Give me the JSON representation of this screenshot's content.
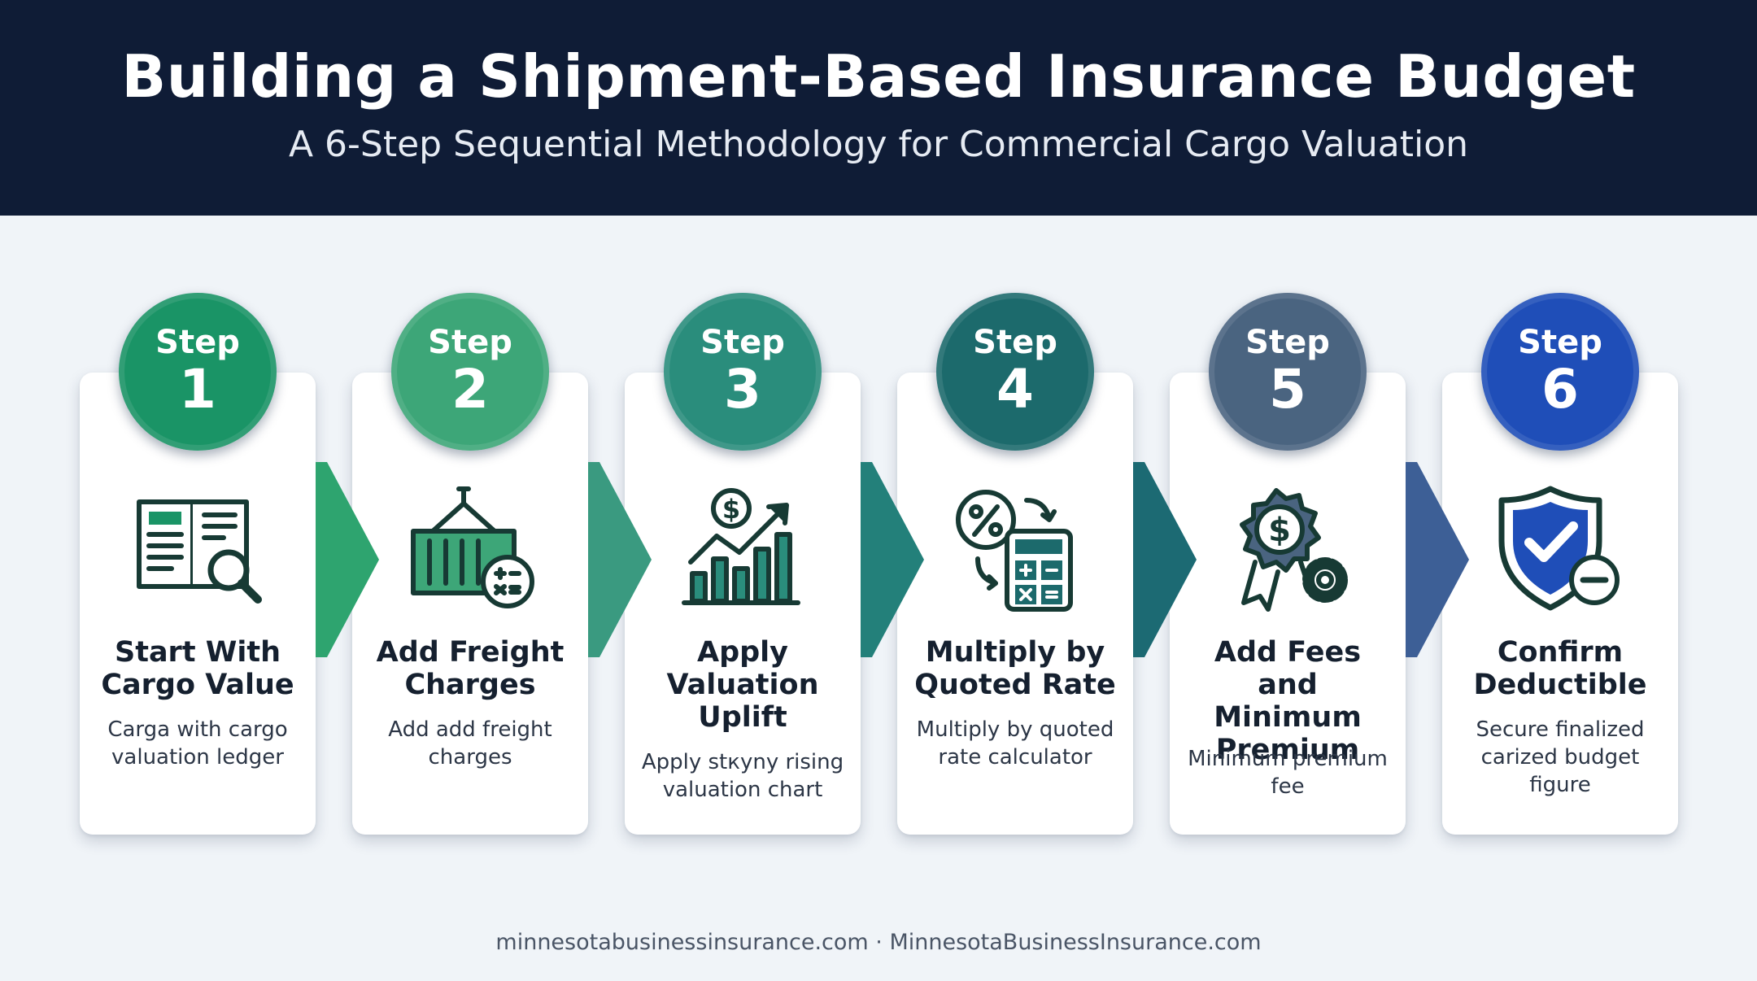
{
  "header": {
    "title": "Building a Shipment-Based Insurance Budget",
    "subtitle": "A 6-Step Sequential Methodology for Commercial Cargo Valuation"
  },
  "steps": [
    {
      "label": "Step",
      "number": "1",
      "title_lines": [
        "Start With",
        "Cargo Value"
      ],
      "desc_lines": [
        "Carga with cargo",
        "valuation ledger"
      ],
      "icon": "ledger-magnifier-icon",
      "color": "#1a9466"
    },
    {
      "label": "Step",
      "number": "2",
      "title_lines": [
        "Add Freight",
        "Charges"
      ],
      "desc_lines": [
        "Add add freight",
        "charges"
      ],
      "icon": "container-calculator-icon",
      "color": "#3da678"
    },
    {
      "label": "Step",
      "number": "3",
      "title_lines": [
        "Apply",
        "Valuation",
        "Uplift"
      ],
      "desc_lines": [
        "Apply stкyny rising",
        "valuation chart"
      ],
      "icon": "rising-chart-dollar-icon",
      "color": "#2a8d7c"
    },
    {
      "label": "Step",
      "number": "4",
      "title_lines": [
        "Multiply by",
        "Quoted Rate"
      ],
      "desc_lines": [
        "Multiply by quoted",
        "rate calculator"
      ],
      "icon": "percent-calculator-icon",
      "color": "#1c6a6c"
    },
    {
      "label": "Step",
      "number": "5",
      "title_lines": [
        "Add Fees and",
        "Minimum",
        "Premium"
      ],
      "desc_lines": [
        "Minimum premium",
        "fee"
      ],
      "icon": "dollar-badge-gear-icon",
      "color": "#4a6480"
    },
    {
      "label": "Step",
      "number": "6",
      "title_lines": [
        "Confirm",
        "Deductible"
      ],
      "desc_lines": [
        "Secure finalized",
        "carized budget",
        "figure"
      ],
      "icon": "shield-check-minus-icon",
      "color": "#1f4eb8"
    }
  ],
  "arrow_colors": [
    "#2ea46f",
    "#3a9a80",
    "#23807a",
    "#1c6a73",
    "#3d5f96"
  ],
  "footer": "minnesotabusinessinsurance.com · MinnesotaBusinessInsurance.com"
}
